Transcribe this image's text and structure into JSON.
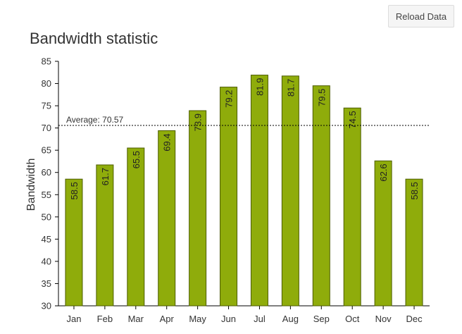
{
  "toolbar": {
    "reload_label": "Reload Data"
  },
  "chart_data": {
    "type": "bar",
    "title": "Bandwidth statistic",
    "xlabel": "",
    "ylabel": "Bandwidth",
    "ylim": [
      30,
      85
    ],
    "yticks": [
      30,
      35,
      40,
      45,
      50,
      55,
      60,
      65,
      70,
      75,
      80,
      85
    ],
    "categories": [
      "Jan",
      "Feb",
      "Mar",
      "Apr",
      "May",
      "Jun",
      "Jul",
      "Aug",
      "Sep",
      "Oct",
      "Nov",
      "Dec"
    ],
    "values": [
      58.5,
      61.7,
      65.5,
      69.4,
      73.9,
      79.2,
      81.9,
      81.7,
      79.5,
      74.5,
      62.6,
      58.5
    ],
    "average": {
      "value": 70.57,
      "label": "Average: 70.57"
    },
    "bar_color": "#8fac0b",
    "bar_stroke": "#4c5c00",
    "grid": false
  }
}
